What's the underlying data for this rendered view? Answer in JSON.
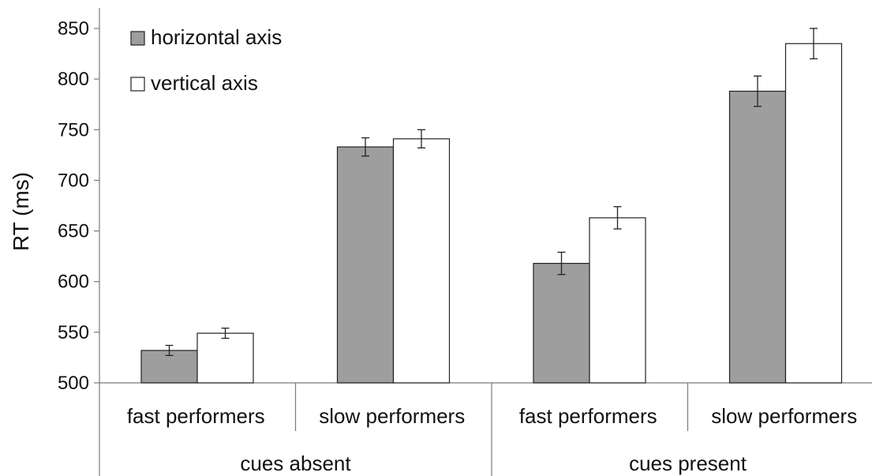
{
  "chart_data": {
    "type": "bar",
    "title": "",
    "ylabel": "RT (ms)",
    "xlabel": "",
    "ylim": [
      500,
      850
    ],
    "yticks": [
      500,
      550,
      600,
      650,
      700,
      750,
      800,
      850
    ],
    "grid": false,
    "legend_position": "top-left",
    "groups": [
      {
        "label": "cues absent",
        "categories": [
          "fast performers",
          "slow performers"
        ]
      },
      {
        "label": "cues present",
        "categories": [
          "fast performers",
          "slow performers"
        ]
      }
    ],
    "categories": [
      "fast performers",
      "slow performers",
      "fast performers",
      "slow performers"
    ],
    "series": [
      {
        "name": "horizontal axis",
        "color": "#9e9e9e",
        "values": [
          532,
          733,
          618,
          788
        ],
        "errors": [
          5,
          9,
          11,
          15
        ]
      },
      {
        "name": "vertical axis",
        "color": "#ffffff",
        "values": [
          549,
          741,
          663,
          835
        ],
        "errors": [
          5,
          9,
          11,
          15
        ]
      }
    ]
  }
}
